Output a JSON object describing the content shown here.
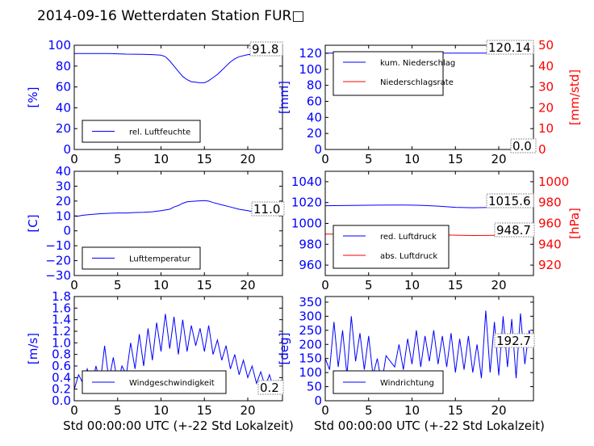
{
  "figure_title": "2014-09-16 Wetterdaten Station FUR□",
  "chart_data": [
    {
      "id": "humidity",
      "type": "line",
      "xlim": [
        0,
        24
      ],
      "xticks": [
        "0",
        "5",
        "10",
        "15",
        "20"
      ],
      "ylim": [
        0,
        100
      ],
      "yticks": [
        "0",
        "20",
        "40",
        "60",
        "80",
        "100"
      ],
      "ylabel": "[%]",
      "axis_color": "#0000ff",
      "annotation": "91.8",
      "series": [
        {
          "name": "rel. Luftfeuchte",
          "color": "#0000ff",
          "points": [
            [
              0,
              92
            ],
            [
              2,
              92
            ],
            [
              4,
              92
            ],
            [
              6,
              91.5
            ],
            [
              8,
              91.3
            ],
            [
              9,
              91
            ],
            [
              10,
              90.5
            ],
            [
              10.5,
              89
            ],
            [
              11,
              85
            ],
            [
              11.5,
              80
            ],
            [
              12,
              75
            ],
            [
              12.5,
              70
            ],
            [
              13,
              67
            ],
            [
              13.5,
              65
            ],
            [
              14,
              64.5
            ],
            [
              14.5,
              64
            ],
            [
              15,
              64
            ],
            [
              15.5,
              66
            ],
            [
              16,
              69
            ],
            [
              16.5,
              72
            ],
            [
              17,
              76
            ],
            [
              17.5,
              80
            ],
            [
              18,
              84
            ],
            [
              18.5,
              87
            ],
            [
              19,
              89
            ],
            [
              20,
              91
            ],
            [
              21,
              91.7
            ],
            [
              22,
              91.8
            ],
            [
              24,
              91.8
            ]
          ]
        }
      ]
    },
    {
      "id": "precip",
      "type": "line",
      "xlim": [
        0,
        24
      ],
      "xticks": [
        "0",
        "5",
        "10",
        "15",
        "20"
      ],
      "ylim": [
        0,
        130
      ],
      "yticks": [
        "0",
        "20",
        "40",
        "60",
        "80",
        "100",
        "120"
      ],
      "ylabel": "[mm]",
      "axis_color": "#0000ff",
      "y2lim": [
        0,
        50
      ],
      "y2ticks": [
        "0",
        "10",
        "20",
        "30",
        "40",
        "50"
      ],
      "y2label": "[mm/std]",
      "axis2_color": "#ff0000",
      "annotation": "120.14",
      "annotation2": "0.0",
      "series": [
        {
          "name": "kum. Niederschlag",
          "color": "#0000ff",
          "axis": "left",
          "points": [
            [
              0,
              120.14
            ],
            [
              24,
              120.14
            ]
          ]
        },
        {
          "name": "Niederschlagsrate",
          "color": "#ff0000",
          "axis": "right",
          "points": [
            [
              0,
              0
            ],
            [
              24,
              0
            ]
          ]
        }
      ]
    },
    {
      "id": "temperature",
      "type": "line",
      "xlim": [
        0,
        24
      ],
      "xticks": [
        "0",
        "5",
        "10",
        "15",
        "20"
      ],
      "ylim": [
        -30,
        40
      ],
      "yticks": [
        "−30",
        "−20",
        "−10",
        "0",
        "10",
        "20",
        "30",
        "40"
      ],
      "ylabel": "[C]",
      "axis_color": "#0000ff",
      "annotation": "11.0",
      "series": [
        {
          "name": "Lufttemperatur",
          "color": "#0000ff",
          "points": [
            [
              0,
              10
            ],
            [
              0.3,
              9.8
            ],
            [
              1,
              10.5
            ],
            [
              2,
              11
            ],
            [
              3,
              11.5
            ],
            [
              4,
              11.8
            ],
            [
              5,
              12
            ],
            [
              6,
              12
            ],
            [
              7,
              12.3
            ],
            [
              8,
              12.5
            ],
            [
              9,
              12.8
            ],
            [
              10,
              13.5
            ],
            [
              11,
              14.5
            ],
            [
              11.5,
              16
            ],
            [
              12,
              17
            ],
            [
              12.5,
              18.5
            ],
            [
              13,
              19.5
            ],
            [
              14,
              20
            ],
            [
              15,
              20.3
            ],
            [
              15.5,
              20
            ],
            [
              16,
              19
            ],
            [
              17,
              17.5
            ],
            [
              18,
              16
            ],
            [
              19,
              14.5
            ],
            [
              20,
              13.5
            ],
            [
              21,
              12.5
            ],
            [
              22,
              12
            ],
            [
              23,
              11.5
            ],
            [
              24,
              11
            ]
          ]
        }
      ]
    },
    {
      "id": "pressure",
      "type": "line",
      "xlim": [
        0,
        24
      ],
      "xticks": [
        "0",
        "5",
        "10",
        "15",
        "20"
      ],
      "ylim": [
        950,
        1050
      ],
      "yticks": [
        "960",
        "980",
        "1000",
        "1020",
        "1040"
      ],
      "y2lim": [
        910,
        1010
      ],
      "y2ticks": [
        "920",
        "940",
        "960",
        "980",
        "1000"
      ],
      "y2label": "[hPa]",
      "axis_color": "#0000ff",
      "axis2_color": "#ff0000",
      "annotation": "1015.6",
      "annotation2": "948.7",
      "series": [
        {
          "name": "red. Luftdruck",
          "color": "#0000ff",
          "axis": "left",
          "points": [
            [
              0,
              1017
            ],
            [
              3,
              1017.2
            ],
            [
              6,
              1017.5
            ],
            [
              9,
              1017.6
            ],
            [
              11,
              1017.4
            ],
            [
              13,
              1016.6
            ],
            [
              15,
              1015.4
            ],
            [
              17,
              1015
            ],
            [
              19,
              1015.3
            ],
            [
              21,
              1015.6
            ],
            [
              24,
              1015.6
            ]
          ]
        },
        {
          "name": "abs. Luftdruck",
          "color": "#ff0000",
          "axis": "right",
          "points": [
            [
              0,
              949.8
            ],
            [
              4,
              949.7
            ],
            [
              8,
              949.8
            ],
            [
              11,
              949.6
            ],
            [
              14,
              948.8
            ],
            [
              17,
              948.4
            ],
            [
              20,
              948.6
            ],
            [
              24,
              948.7
            ]
          ]
        }
      ]
    },
    {
      "id": "wind_speed",
      "type": "line",
      "xlim": [
        0,
        24
      ],
      "xticks": [
        "0",
        "5",
        "10",
        "15",
        "20"
      ],
      "ylim": [
        0,
        1.8
      ],
      "yticks": [
        "0.0",
        "0.2",
        "0.4",
        "0.6",
        "0.8",
        "1.0",
        "1.2",
        "1.4",
        "1.6",
        "1.8"
      ],
      "ylabel": "[m/s]",
      "axis_color": "#0000ff",
      "annotation": "0.2",
      "series": [
        {
          "name": "Windgeschwindigkeit",
          "color": "#0000ff",
          "points": [
            [
              0,
              0.2
            ],
            [
              0.5,
              0.45
            ],
            [
              1,
              0.3
            ],
            [
              1.5,
              0.55
            ],
            [
              2,
              0.25
            ],
            [
              2.5,
              0.6
            ],
            [
              3,
              0.3
            ],
            [
              3.5,
              0.95
            ],
            [
              4,
              0.35
            ],
            [
              4.5,
              0.75
            ],
            [
              5,
              0.3
            ],
            [
              5.5,
              0.6
            ],
            [
              6,
              0.45
            ],
            [
              6.5,
              1.0
            ],
            [
              7,
              0.55
            ],
            [
              7.5,
              1.15
            ],
            [
              8,
              0.6
            ],
            [
              8.5,
              1.25
            ],
            [
              9,
              0.7
            ],
            [
              9.5,
              1.35
            ],
            [
              10,
              0.85
            ],
            [
              10.5,
              1.5
            ],
            [
              11,
              0.9
            ],
            [
              11.5,
              1.45
            ],
            [
              12,
              0.8
            ],
            [
              12.5,
              1.4
            ],
            [
              13,
              0.85
            ],
            [
              13.5,
              1.3
            ],
            [
              14,
              0.95
            ],
            [
              14.5,
              1.25
            ],
            [
              15,
              0.85
            ],
            [
              15.5,
              1.3
            ],
            [
              16,
              0.8
            ],
            [
              16.5,
              1.05
            ],
            [
              17,
              0.7
            ],
            [
              17.5,
              0.95
            ],
            [
              18,
              0.55
            ],
            [
              18.5,
              0.8
            ],
            [
              19,
              0.45
            ],
            [
              19.5,
              0.7
            ],
            [
              20,
              0.4
            ],
            [
              20.5,
              0.6
            ],
            [
              21,
              0.3
            ],
            [
              21.5,
              0.5
            ],
            [
              22,
              0.25
            ],
            [
              22.5,
              0.45
            ],
            [
              23,
              0.2
            ],
            [
              23.5,
              0.35
            ],
            [
              24,
              0.2
            ]
          ]
        }
      ]
    },
    {
      "id": "wind_dir",
      "type": "line",
      "xlim": [
        0,
        24
      ],
      "xticks": [
        "0",
        "5",
        "10",
        "15",
        "20"
      ],
      "ylim": [
        0,
        370
      ],
      "yticks": [
        "0",
        "50",
        "100",
        "150",
        "200",
        "250",
        "300",
        "350"
      ],
      "ylabel": "[deg]",
      "axis_color": "#0000ff",
      "annotation": "192.7",
      "series": [
        {
          "name": "Windrichtung",
          "color": "#0000ff",
          "points": [
            [
              0,
              150
            ],
            [
              0.5,
              110
            ],
            [
              1,
              280
            ],
            [
              1.5,
              120
            ],
            [
              2,
              250
            ],
            [
              2.5,
              90
            ],
            [
              3,
              300
            ],
            [
              3.5,
              140
            ],
            [
              4,
              240
            ],
            [
              4.5,
              110
            ],
            [
              5,
              230
            ],
            [
              5.5,
              90
            ],
            [
              6,
              150
            ],
            [
              6.5,
              60
            ],
            [
              7,
              160
            ],
            [
              8,
              120
            ],
            [
              8.5,
              200
            ],
            [
              9,
              110
            ],
            [
              9.5,
              220
            ],
            [
              10,
              130
            ],
            [
              10.5,
              250
            ],
            [
              11,
              120
            ],
            [
              11.5,
              230
            ],
            [
              12,
              140
            ],
            [
              12.5,
              250
            ],
            [
              13,
              130
            ],
            [
              13.5,
              230
            ],
            [
              14,
              120
            ],
            [
              14.5,
              240
            ],
            [
              15,
              100
            ],
            [
              15.5,
              220
            ],
            [
              16,
              110
            ],
            [
              16.5,
              230
            ],
            [
              17,
              100
            ],
            [
              17.5,
              200
            ],
            [
              18,
              80
            ],
            [
              18.5,
              320
            ],
            [
              19,
              100
            ],
            [
              19.5,
              280
            ],
            [
              20,
              90
            ],
            [
              20.5,
              300
            ],
            [
              21,
              120
            ],
            [
              21.5,
              290
            ],
            [
              22,
              80
            ],
            [
              22.5,
              310
            ],
            [
              23,
              130
            ],
            [
              23.5,
              250
            ],
            [
              24,
              190
            ]
          ]
        }
      ]
    }
  ],
  "x_axis_label": "Std 00:00:00 UTC (+-22 Std Lokalzeit)"
}
